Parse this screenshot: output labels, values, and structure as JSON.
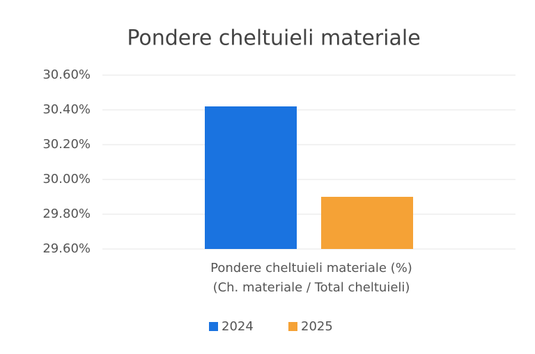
{
  "chart_data": {
    "type": "bar",
    "title": "Pondere cheltuieli materiale",
    "categories": [
      "Pondere cheltuieli materiale (%)\n(Ch. materiale / Total cheltuieli)"
    ],
    "series": [
      {
        "name": "2024",
        "color": "#1a73e0",
        "values": [
          30.42
        ]
      },
      {
        "name": "2025",
        "color": "#f5a236",
        "values": [
          29.9
        ]
      }
    ],
    "ylim": [
      29.6,
      30.6
    ],
    "yticks": [
      {
        "value": 29.6,
        "label": "29.60%"
      },
      {
        "value": 29.8,
        "label": "29.80%"
      },
      {
        "value": 30.0,
        "label": "30.00%"
      },
      {
        "value": 30.2,
        "label": "30.20%"
      },
      {
        "value": 30.4,
        "label": "30.40%"
      },
      {
        "value": 30.6,
        "label": "30.60%"
      }
    ],
    "grid": true,
    "legend": "bottom"
  }
}
